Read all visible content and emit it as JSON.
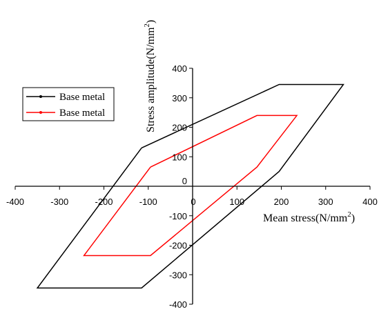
{
  "chart_data": {
    "type": "line",
    "title": "",
    "xlabel": "Mean stress(N/mm",
    "xlabel_sup": "2",
    "xlabel_close": ")",
    "ylabel": "Stress amplitude(N/mm",
    "ylabel_sup": "2",
    "ylabel_close": ")",
    "xlim": [
      -400,
      400
    ],
    "ylim": [
      -400,
      400
    ],
    "x_ticks": [
      -400,
      -300,
      -200,
      -100,
      0,
      100,
      200,
      300,
      400
    ],
    "y_ticks": [
      -400,
      -300,
      -200,
      -100,
      0,
      100,
      200,
      300,
      400
    ],
    "x_tick_labels": [
      "-400",
      "-300",
      "-200",
      "-100",
      "0",
      "100",
      "200",
      "300",
      "400"
    ],
    "y_tick_labels": [
      "-400",
      "-300",
      "-200",
      "-100",
      "0",
      "100",
      "200",
      "300",
      "400"
    ],
    "grid": false,
    "axes": "crossing at origin",
    "legend_position": "left",
    "series": [
      {
        "name": "Base metal",
        "color": "#000000",
        "x": [
          -115,
          195,
          340,
          195,
          -115,
          -350,
          -115
        ],
        "y": [
          130,
          345,
          345,
          50,
          -345,
          -345,
          130
        ]
      },
      {
        "name": "Base metal",
        "color": "#ff0000",
        "x": [
          -95,
          145,
          235,
          145,
          -95,
          -245,
          -95
        ],
        "y": [
          65,
          240,
          240,
          65,
          -235,
          -235,
          65
        ]
      }
    ]
  }
}
